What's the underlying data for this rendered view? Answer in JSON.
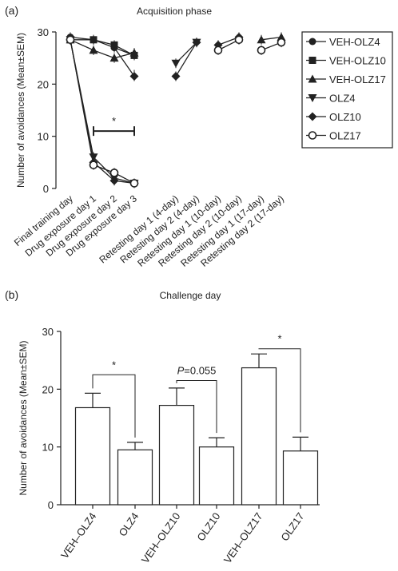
{
  "chart_data": [
    {
      "panel_label": "(a)",
      "type": "line",
      "title": "Acquisition phase",
      "ylabel": "Number of avoidances (Mean±SEM)",
      "ylim": [
        0,
        30
      ],
      "yticks": [
        0,
        10,
        20,
        30
      ],
      "categories": [
        "Final training day",
        "Drug exposure day 1",
        "Drug exposure day 2",
        "Drug exposure day 3",
        "Retesting day 1 (4-day)",
        "Retesting day 2 (4-day)",
        "Retesting day 1 (10-day)",
        "Retesting day 2 (10-day)",
        "Retesting day 1 (17-day)",
        "Retesting day 2 (17-day)"
      ],
      "segments": [
        [
          0,
          3
        ],
        [
          4,
          5
        ],
        [
          6,
          7
        ],
        [
          8,
          9
        ]
      ],
      "series": [
        {
          "name": "VEH-OLZ4",
          "marker": "circle-filled",
          "values": [
            29,
            28.5,
            27,
            25.5,
            null,
            null,
            null,
            null,
            null,
            null
          ]
        },
        {
          "name": "VEH-OLZ10",
          "marker": "square-filled",
          "values": [
            28.5,
            28.5,
            27.5,
            25.5,
            null,
            null,
            null,
            null,
            null,
            null
          ]
        },
        {
          "name": "VEH-OLZ17",
          "marker": "triangle-up",
          "values": [
            28.5,
            26.5,
            25,
            26,
            null,
            null,
            null,
            null,
            28.5,
            29
          ]
        },
        {
          "name": "OLZ4",
          "marker": "triangle-down",
          "values": [
            28.5,
            6,
            2,
            1,
            24,
            28,
            null,
            null,
            null,
            null
          ]
        },
        {
          "name": "OLZ10",
          "marker": "diamond",
          "values": [
            28.5,
            5,
            1.5,
            1,
            21.5,
            28,
            27.5,
            29,
            null,
            null
          ]
        },
        {
          "name": "OLZ17",
          "marker": "circle-open",
          "values": [
            28.5,
            4.5,
            3,
            1,
            null,
            null,
            26.5,
            28.5,
            26.5,
            28
          ]
        }
      ],
      "extra_points": [
        {
          "series": "VEH-OLZ4",
          "values": [
            null,
            null,
            null,
            21.5,
            null,
            null,
            null,
            null,
            null,
            null
          ],
          "label": "lower drug-day-3 point"
        }
      ],
      "significance": [
        {
          "from": 1,
          "to": 3,
          "y": 11,
          "label": "*"
        }
      ]
    },
    {
      "panel_label": "(b)",
      "type": "bar",
      "title": "Challenge day",
      "ylabel": "Number of avoidances (Mean±SEM)",
      "ylim": [
        0,
        30
      ],
      "yticks": [
        0,
        10,
        20,
        30
      ],
      "categories": [
        "VEH–OLZ4",
        "OLZ4",
        "VEH–OLZ10",
        "OLZ10",
        "VEH–OLZ17",
        "OLZ17"
      ],
      "values": [
        16.8,
        9.5,
        17.2,
        10,
        23.7,
        9.3
      ],
      "errors": [
        2.5,
        1.3,
        3.0,
        1.6,
        2.4,
        2.4
      ],
      "comparisons": [
        {
          "from": 0,
          "to": 1,
          "label": "*",
          "italic_prefix": "",
          "top": 22.5
        },
        {
          "from": 2,
          "to": 3,
          "label": "=0.055",
          "italic_prefix": "P",
          "top": 21.5
        },
        {
          "from": 4,
          "to": 5,
          "label": "*",
          "italic_prefix": "",
          "top": 27
        }
      ]
    }
  ]
}
